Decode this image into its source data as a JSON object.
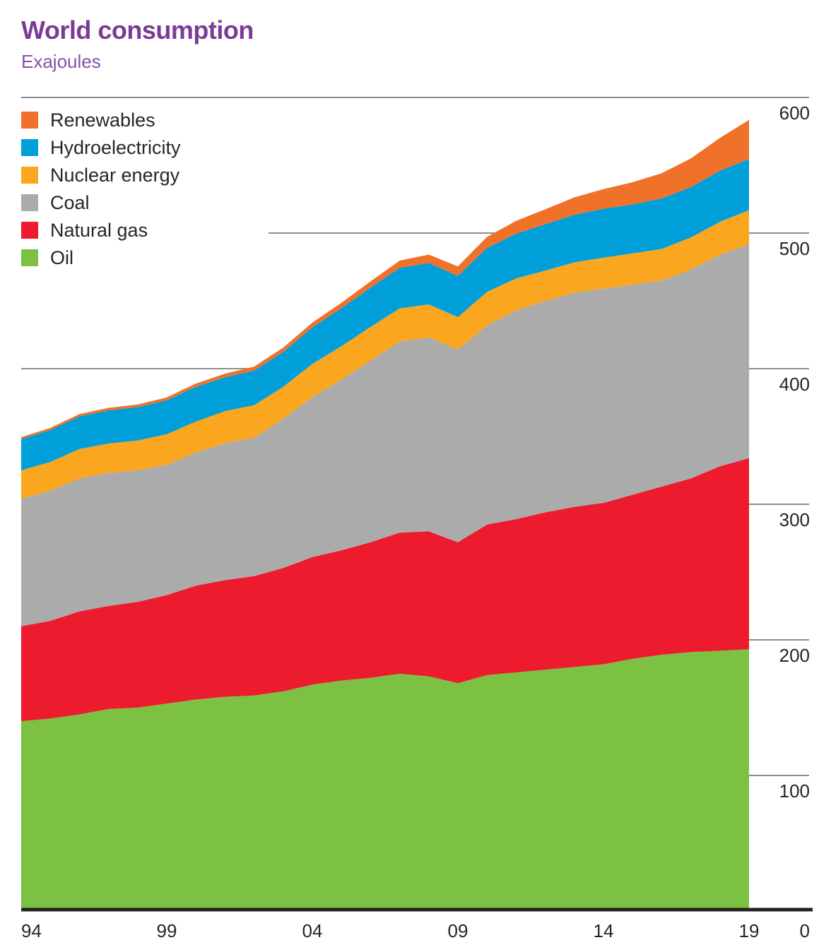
{
  "header": {
    "title": "World consumption",
    "subtitle": "Exajoules"
  },
  "colors": {
    "title_purple": "#7C3A96",
    "subtitle_purple": "#8850A5",
    "grid_gray": "#8C8C8C",
    "axis_black": "#231F20",
    "tick_text": "#262626"
  },
  "chart_data": {
    "type": "area",
    "stacked": true,
    "title": "World consumption",
    "ylabel": "Exajoules",
    "xlabel": "",
    "grid": "horizontal",
    "legend_position": "top-left",
    "ylim": [
      0,
      600
    ],
    "yticks": [
      0,
      100,
      200,
      300,
      400,
      500,
      600
    ],
    "x": [
      1994,
      1995,
      1996,
      1997,
      1998,
      1999,
      2000,
      2001,
      2002,
      2003,
      2004,
      2005,
      2006,
      2007,
      2008,
      2009,
      2010,
      2011,
      2012,
      2013,
      2014,
      2015,
      2016,
      2017,
      2018,
      2019
    ],
    "x_ticks": [
      {
        "year": 1994,
        "label": "94"
      },
      {
        "year": 1999,
        "label": "99"
      },
      {
        "year": 2004,
        "label": "04"
      },
      {
        "year": 2009,
        "label": "09"
      },
      {
        "year": 2014,
        "label": "14"
      },
      {
        "year": 2019,
        "label": "19"
      }
    ],
    "series": [
      {
        "name": "Oil",
        "color": "#7DC142",
        "values": [
          140,
          142,
          145,
          149,
          150,
          153,
          156,
          158,
          159,
          162,
          167,
          170,
          172,
          175,
          173,
          168,
          174,
          176,
          178,
          180,
          182,
          186,
          189,
          191,
          192,
          193
        ]
      },
      {
        "name": "Natural gas",
        "color": "#EC1B2D",
        "values": [
          70,
          72,
          76,
          76,
          78,
          80,
          84,
          86,
          88,
          91,
          94,
          96,
          100,
          104,
          107,
          104,
          111,
          113,
          116,
          118,
          119,
          121,
          124,
          128,
          136,
          141
        ]
      },
      {
        "name": "Coal",
        "color": "#ABABAB",
        "values": [
          94,
          96,
          98,
          98,
          97,
          96,
          98,
          101,
          102,
          110,
          118,
          126,
          134,
          141,
          143,
          142,
          147,
          154,
          156,
          158,
          158,
          155,
          152,
          154,
          156,
          158
        ]
      },
      {
        "name": "Nuclear energy",
        "color": "#FAA61E",
        "values": [
          21,
          21.2,
          21.8,
          21.8,
          22,
          22.6,
          23,
          23.7,
          24,
          23.6,
          24.5,
          24.6,
          24.8,
          24.5,
          24.4,
          24,
          24.6,
          23.5,
          22.3,
          22.4,
          22.8,
          23,
          23.3,
          23.7,
          24.3,
          24.9
        ]
      },
      {
        "name": "Hydroelectricity",
        "color": "#009FDA",
        "values": [
          23,
          23.5,
          24,
          24.4,
          24.6,
          25,
          25.6,
          25,
          25.6,
          25.7,
          26.9,
          28,
          29,
          29.8,
          30.5,
          30.4,
          32.4,
          33,
          34.2,
          35.1,
          36.1,
          36.1,
          37.2,
          37.1,
          37.7,
          37.6
        ]
      },
      {
        "name": "Renewables",
        "color": "#F0712A",
        "values": [
          1.5,
          1.6,
          1.7,
          1.9,
          2,
          2.2,
          2.4,
          2.6,
          2.9,
          3.2,
          3.6,
          4,
          4.6,
          5.4,
          6.2,
          7,
          8.2,
          9.5,
          11,
          12.8,
          14.5,
          16.4,
          18.6,
          21.2,
          24.2,
          29
        ]
      }
    ],
    "legend_order_top_to_bottom": [
      "Renewables",
      "Hydroelectricity",
      "Nuclear energy",
      "Coal",
      "Natural gas",
      "Oil"
    ]
  }
}
